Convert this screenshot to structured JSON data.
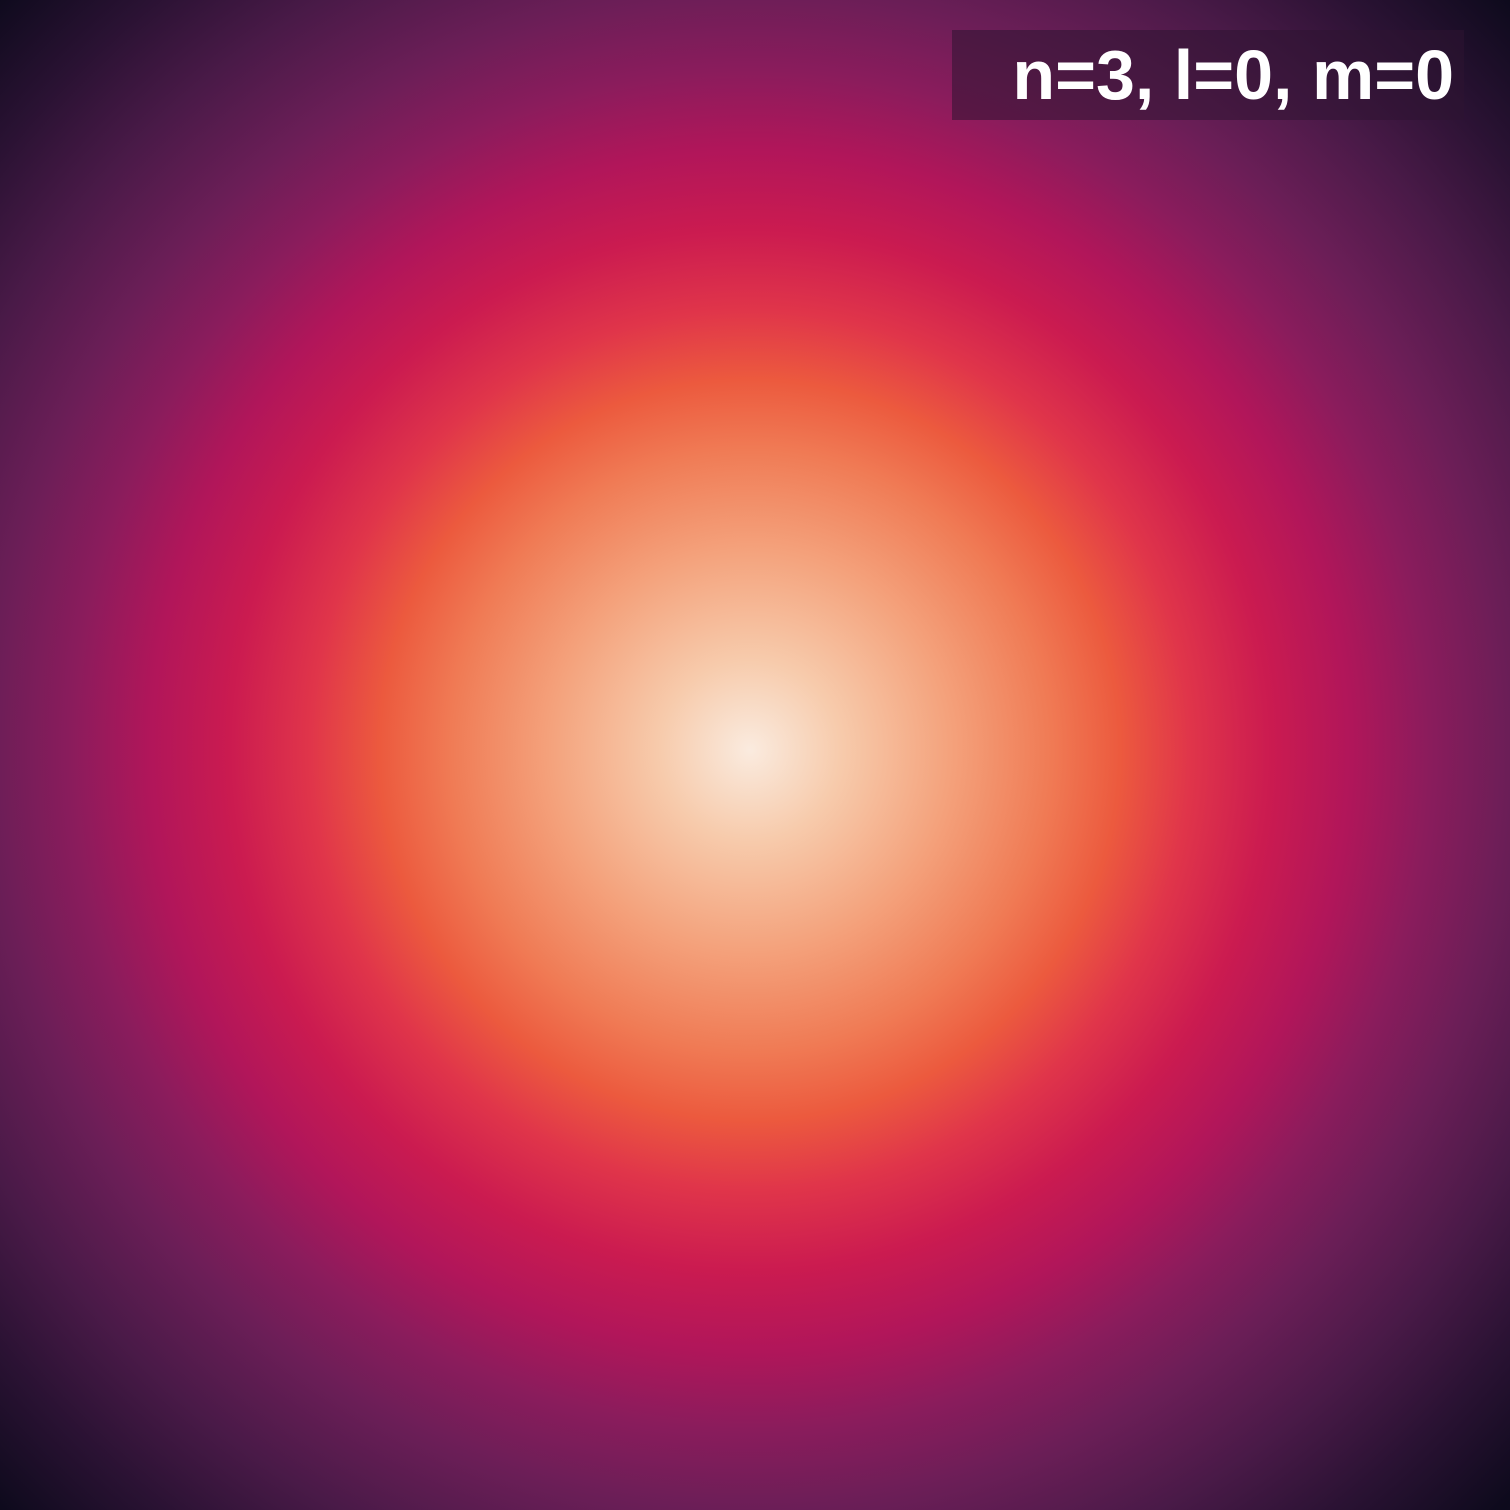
{
  "label": "n=3, l=0, m=0"
}
